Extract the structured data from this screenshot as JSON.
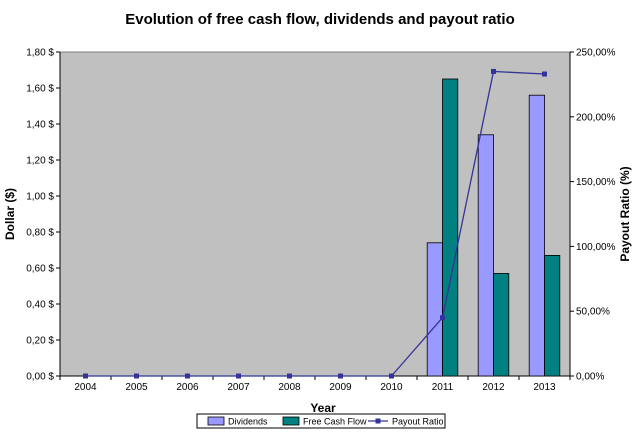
{
  "chart_data": {
    "type": "bar",
    "title": "Evolution of free cash flow, dividends and payout ratio",
    "xlabel": "Year",
    "ylabel": "Dollar ($)",
    "y2label": "Payout Ratio (%)",
    "categories": [
      "2004",
      "2005",
      "2006",
      "2007",
      "2008",
      "2009",
      "2010",
      "2011",
      "2012",
      "2013"
    ],
    "ylim": [
      0,
      1.8
    ],
    "y2lim": [
      0,
      250
    ],
    "y_ticks": [
      "0,00 $",
      "0,20 $",
      "0,40 $",
      "0,60 $",
      "0,80 $",
      "1,00 $",
      "1,20 $",
      "1,40 $",
      "1,60 $",
      "1,80 $"
    ],
    "y2_ticks": [
      "0,00%",
      "50,00%",
      "100,00%",
      "150,00%",
      "200,00%",
      "250,00%"
    ],
    "series": [
      {
        "name": "Dividends",
        "type": "bar",
        "color": "#9999ff",
        "values": [
          0,
          0,
          0,
          0,
          0,
          0,
          0,
          0.74,
          1.34,
          1.56
        ]
      },
      {
        "name": "Free Cash Flow",
        "type": "bar",
        "color": "#008080",
        "values": [
          0,
          0,
          0,
          0,
          0,
          0,
          0,
          1.65,
          0.57,
          0.67
        ]
      },
      {
        "name": "Payout Ratio",
        "type": "line",
        "axis": "right",
        "color": "#333399",
        "values": [
          0,
          0,
          0,
          0,
          0,
          0,
          0,
          45,
          235,
          233
        ]
      }
    ],
    "grid": false,
    "legend_position": "bottom",
    "plot_background": "#c0c0c0"
  }
}
